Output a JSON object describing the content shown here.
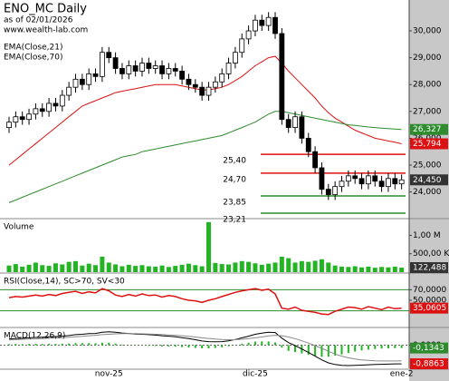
{
  "chart_data": [
    {
      "type": "candlestick",
      "title": "ENO_MC Daily",
      "subtitle": "as of 02/01/2026",
      "source": "www.wealth-lab.com",
      "categories": [
        null,
        null,
        null,
        null,
        null,
        null,
        null,
        null,
        null,
        null,
        null,
        null,
        null,
        null,
        null,
        "nov-25",
        null,
        null,
        null,
        null,
        null,
        null,
        null,
        null,
        null,
        null,
        null,
        null,
        null,
        null,
        null,
        null,
        null,
        null,
        null,
        null,
        null,
        "dic-25",
        null,
        null,
        null,
        null,
        null,
        null,
        null,
        null,
        null,
        null,
        null,
        null,
        null,
        null,
        null,
        null,
        null,
        null,
        null,
        null,
        null,
        "ene-2"
      ],
      "open": [
        26.4,
        26.6,
        26.8,
        26.7,
        26.9,
        27.1,
        27.0,
        27.3,
        27.2,
        27.6,
        27.9,
        28.2,
        28.0,
        28.4,
        28.3,
        29.2,
        29.0,
        28.6,
        28.4,
        28.7,
        28.5,
        28.8,
        28.6,
        28.7,
        28.4,
        28.6,
        28.5,
        28.2,
        28.0,
        27.9,
        27.6,
        27.9,
        28.1,
        28.4,
        28.8,
        29.2,
        29.7,
        30.0,
        30.4,
        30.2,
        30.5,
        29.9,
        26.7,
        26.4,
        26.8,
        26.0,
        25.5,
        24.9,
        24.1,
        23.9,
        24.2,
        24.4,
        24.6,
        24.5,
        24.3,
        24.6,
        24.4,
        24.2,
        24.5,
        24.3
      ],
      "high": [
        26.8,
        27.0,
        27.0,
        27.1,
        27.3,
        27.3,
        27.5,
        27.5,
        27.8,
        28.1,
        28.4,
        28.4,
        28.6,
        28.6,
        29.4,
        29.4,
        29.2,
        28.8,
        28.9,
        28.9,
        29.0,
        29.0,
        28.9,
        28.9,
        28.8,
        28.8,
        28.7,
        28.4,
        28.2,
        28.1,
        28.1,
        28.3,
        28.6,
        29.0,
        29.4,
        29.9,
        30.2,
        30.6,
        30.6,
        30.7,
        30.7,
        30.1,
        26.9,
        27.0,
        27.0,
        26.2,
        25.7,
        25.1,
        24.3,
        24.4,
        24.6,
        24.8,
        24.8,
        24.7,
        24.8,
        24.8,
        24.6,
        24.7,
        24.7,
        24.65
      ],
      "low": [
        26.2,
        26.4,
        26.5,
        26.5,
        26.7,
        26.8,
        26.8,
        27.0,
        27.0,
        27.4,
        27.7,
        27.8,
        27.8,
        28.1,
        28.1,
        28.8,
        28.4,
        28.2,
        28.2,
        28.3,
        28.3,
        28.4,
        28.4,
        28.2,
        28.2,
        28.3,
        28.0,
        27.8,
        27.7,
        27.4,
        27.4,
        27.7,
        27.9,
        28.2,
        28.6,
        29.0,
        29.5,
        29.8,
        30.0,
        30.0,
        29.7,
        26.5,
        26.2,
        26.2,
        25.8,
        25.3,
        24.7,
        23.9,
        23.7,
        23.7,
        24.0,
        24.2,
        24.3,
        24.1,
        24.1,
        24.2,
        24.0,
        24.0,
        24.1,
        24.1
      ],
      "close": [
        26.6,
        26.8,
        26.7,
        26.9,
        27.1,
        27.0,
        27.3,
        27.2,
        27.6,
        27.9,
        28.2,
        28.0,
        28.4,
        28.3,
        29.2,
        29.0,
        28.6,
        28.4,
        28.7,
        28.5,
        28.8,
        28.6,
        28.7,
        28.4,
        28.6,
        28.5,
        28.2,
        28.0,
        27.9,
        27.6,
        27.9,
        28.1,
        28.4,
        28.8,
        29.2,
        29.7,
        30.0,
        30.4,
        30.2,
        30.5,
        29.9,
        26.7,
        26.4,
        26.8,
        26.0,
        25.5,
        24.9,
        24.1,
        23.9,
        24.2,
        24.4,
        24.6,
        24.5,
        24.3,
        24.6,
        24.4,
        24.2,
        24.5,
        24.3,
        24.45
      ],
      "lines": [
        {
          "name": "EMA(Close,21)",
          "color": "#dd1111",
          "values": [
            25.0,
            25.2,
            25.4,
            25.6,
            25.8,
            26.0,
            26.2,
            26.4,
            26.6,
            26.8,
            27.0,
            27.2,
            27.3,
            27.4,
            27.5,
            27.6,
            27.7,
            27.75,
            27.8,
            27.85,
            27.9,
            27.95,
            28.0,
            28.0,
            28.0,
            28.0,
            27.95,
            27.9,
            27.85,
            27.8,
            27.8,
            27.85,
            27.9,
            28.0,
            28.15,
            28.3,
            28.5,
            28.7,
            28.85,
            29.0,
            29.05,
            28.8,
            28.5,
            28.25,
            28.0,
            27.75,
            27.5,
            27.2,
            26.95,
            26.75,
            26.6,
            26.45,
            26.3,
            26.2,
            26.1,
            26.0,
            25.95,
            25.9,
            25.85,
            25.794
          ]
        },
        {
          "name": "EMA(Close,70)",
          "color": "#2e8b2e",
          "values": [
            23.6,
            23.7,
            23.8,
            23.9,
            24.0,
            24.1,
            24.2,
            24.3,
            24.4,
            24.5,
            24.6,
            24.7,
            24.8,
            24.9,
            25.0,
            25.1,
            25.2,
            25.3,
            25.35,
            25.4,
            25.5,
            25.55,
            25.6,
            25.65,
            25.7,
            25.75,
            25.8,
            25.85,
            25.9,
            25.95,
            26.0,
            26.05,
            26.1,
            26.2,
            26.3,
            26.4,
            26.5,
            26.6,
            26.75,
            26.9,
            27.0,
            27.0,
            26.95,
            26.9,
            26.85,
            26.8,
            26.75,
            26.7,
            26.65,
            26.6,
            26.55,
            26.5,
            26.48,
            26.45,
            26.42,
            26.4,
            26.38,
            26.36,
            26.34,
            26.327
          ]
        }
      ],
      "levels": [
        {
          "value": 25.4,
          "label": "25,40",
          "color": "#dd1111"
        },
        {
          "value": 24.7,
          "label": "24,70",
          "color": "#dd1111"
        },
        {
          "value": 23.85,
          "label": "23,85",
          "color": "#2e8b2e"
        },
        {
          "value": 23.21,
          "label": "23,21",
          "color": "#2e8b2e"
        }
      ],
      "ylim": [
        23.04,
        31.15
      ],
      "yticks": [
        {
          "value": 30,
          "label": "30,000"
        },
        {
          "value": 29,
          "label": "29,000"
        },
        {
          "value": 28,
          "label": "28,000"
        },
        {
          "value": 27,
          "label": "27,000"
        },
        {
          "value": 26,
          "label": "26,000"
        },
        {
          "value": 25,
          "label": "25,000"
        },
        {
          "value": 24,
          "label": "24,000"
        }
      ],
      "badges": [
        {
          "value": 26.327,
          "label": "26,327",
          "color": "#2e8b2e"
        },
        {
          "value": 25.794,
          "label": "25,794",
          "color": "#dd1111"
        },
        {
          "value": 24.45,
          "label": "24,450",
          "color": "#333333"
        }
      ]
    },
    {
      "type": "bar",
      "title": "Volume",
      "color": "#22b422",
      "values": [
        180000,
        220000,
        150000,
        200000,
        260000,
        190000,
        170000,
        240000,
        210000,
        280000,
        300000,
        180000,
        230000,
        190000,
        420000,
        260000,
        210000,
        160000,
        200000,
        170000,
        190000,
        160000,
        150000,
        180000,
        140000,
        170000,
        200000,
        230000,
        190000,
        160000,
        1360000,
        250000,
        220000,
        210000,
        260000,
        300000,
        280000,
        240000,
        200000,
        230000,
        260000,
        420000,
        380000,
        260000,
        300000,
        280000,
        310000,
        350000,
        260000,
        180000,
        150000,
        140000,
        160000,
        130000,
        150000,
        120000,
        140000,
        130000,
        150000,
        122488
      ],
      "ylim": [
        0,
        1430000
      ],
      "yticks": [
        {
          "value": 1000000,
          "label": "1,00 M"
        },
        {
          "value": 500000,
          "label": "500,00 K"
        }
      ],
      "badges": [
        {
          "value": 122488,
          "label": "122,488",
          "color": "#333333"
        }
      ]
    },
    {
      "type": "line",
      "title": "RSI(Close,14), SC>70, SV<30",
      "series": [
        {
          "color": "#dd1111",
          "values": [
            55,
            57,
            56,
            58,
            60,
            58,
            61,
            59,
            63,
            65,
            67,
            63,
            66,
            64,
            72,
            68,
            60,
            57,
            61,
            58,
            62,
            59,
            60,
            56,
            59,
            57,
            53,
            50,
            49,
            46,
            50,
            53,
            57,
            61,
            65,
            68,
            70,
            72,
            69,
            71,
            62,
            35,
            33,
            37,
            31,
            29,
            27,
            24,
            23,
            29,
            33,
            37,
            36,
            33,
            38,
            35,
            32,
            37,
            34,
            35.0605
          ]
        }
      ],
      "levels": [
        {
          "value": 70,
          "color": "#2e8b2e"
        },
        {
          "value": 30,
          "color": "#2e8b2e"
        }
      ],
      "ylim": [
        0,
        100
      ],
      "yticks": [
        {
          "value": 70,
          "label": "70,0000"
        },
        {
          "value": 50,
          "label": "50,0000"
        }
      ],
      "badges": [
        {
          "value": 35.0605,
          "label": "35,0605",
          "color": "#dd1111"
        }
      ]
    },
    {
      "type": "macd",
      "title": "MACD(12,26,9)",
      "series": [
        {
          "color": "#000000",
          "values": [
            0.3,
            0.32,
            0.33,
            0.35,
            0.37,
            0.38,
            0.4,
            0.41,
            0.43,
            0.46,
            0.5,
            0.52,
            0.55,
            0.56,
            0.62,
            0.64,
            0.62,
            0.58,
            0.56,
            0.53,
            0.52,
            0.5,
            0.48,
            0.45,
            0.43,
            0.4,
            0.36,
            0.31,
            0.26,
            0.2,
            0.17,
            0.16,
            0.17,
            0.21,
            0.27,
            0.35,
            0.43,
            0.52,
            0.57,
            0.62,
            0.6,
            0.34,
            0.12,
            -0.02,
            -0.18,
            -0.35,
            -0.52,
            -0.7,
            -0.84,
            -0.92,
            -0.96,
            -0.97,
            -0.96,
            -0.95,
            -0.93,
            -0.92,
            -0.91,
            -0.9,
            -0.89,
            -0.8863
          ]
        },
        {
          "color": "#888888",
          "values": [
            0.25,
            0.26,
            0.28,
            0.29,
            0.3,
            0.32,
            0.33,
            0.35,
            0.36,
            0.38,
            0.4,
            0.42,
            0.45,
            0.47,
            0.5,
            0.52,
            0.54,
            0.55,
            0.55,
            0.55,
            0.54,
            0.53,
            0.52,
            0.51,
            0.49,
            0.47,
            0.45,
            0.42,
            0.39,
            0.35,
            0.32,
            0.29,
            0.27,
            0.26,
            0.26,
            0.28,
            0.31,
            0.35,
            0.39,
            0.44,
            0.47,
            0.45,
            0.39,
            0.31,
            0.21,
            0.1,
            -0.02,
            -0.15,
            -0.29,
            -0.42,
            -0.52,
            -0.6,
            -0.66,
            -0.7,
            -0.72,
            -0.74,
            -0.75,
            -0.75,
            -0.75,
            -0.752
          ]
        }
      ],
      "histogram": {
        "color": "#22b422",
        "values": [
          0.05,
          0.06,
          0.05,
          0.06,
          0.07,
          0.06,
          0.07,
          0.06,
          0.07,
          0.08,
          0.1,
          0.1,
          0.1,
          0.09,
          0.12,
          0.12,
          0.08,
          0.03,
          0.01,
          -0.02,
          -0.02,
          -0.03,
          -0.04,
          -0.06,
          -0.06,
          -0.07,
          -0.09,
          -0.11,
          -0.13,
          -0.15,
          -0.15,
          -0.13,
          -0.1,
          -0.05,
          0.01,
          0.07,
          0.12,
          0.17,
          0.18,
          0.18,
          0.13,
          -0.11,
          -0.27,
          -0.33,
          -0.39,
          -0.45,
          -0.5,
          -0.55,
          -0.55,
          -0.5,
          -0.44,
          -0.37,
          -0.3,
          -0.25,
          -0.21,
          -0.18,
          -0.16,
          -0.15,
          -0.14,
          -0.1343
        ]
      },
      "ylim": [
        -1.1,
        0.8
      ],
      "yticks": [
        {
          "value": 0,
          "label": "0,0000"
        }
      ],
      "badges": [
        {
          "value": -0.1343,
          "label": "-0,1343",
          "color": "#2e8b2e"
        },
        {
          "value": -0.8863,
          "label": "-0,8863",
          "color": "#dd1111"
        }
      ]
    }
  ]
}
